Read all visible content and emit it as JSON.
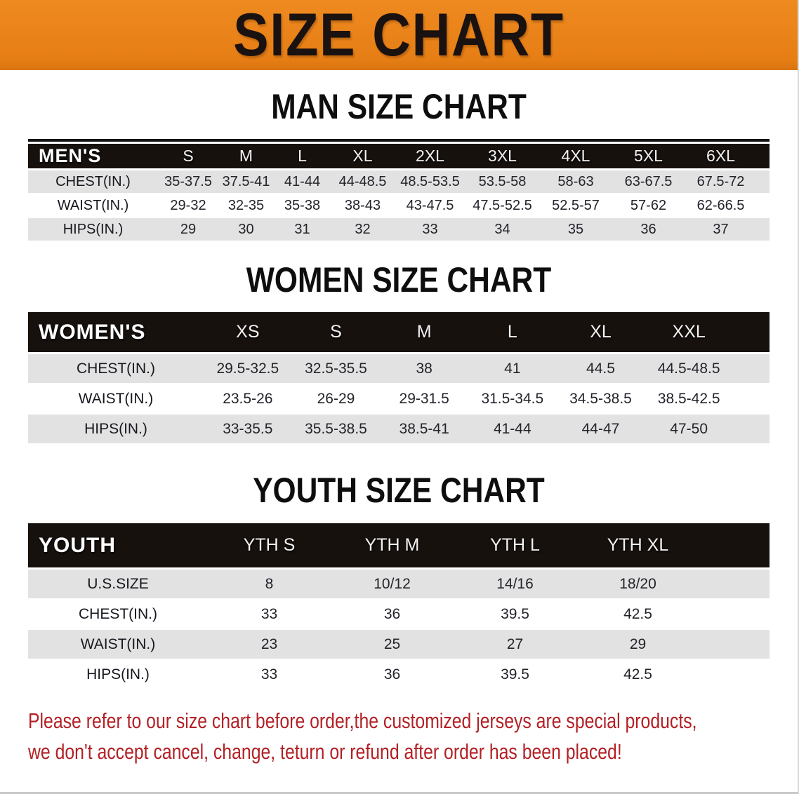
{
  "banner": {
    "title": "SIZE CHART"
  },
  "colors": {
    "banner_orange": "#E8811A",
    "table_header_black": "#17110E",
    "row_shade_gray": "#E3E2E2",
    "note_red": "#B32025"
  },
  "sections": {
    "men": {
      "heading": "MAN SIZE CHART",
      "table": {
        "label": "MEN'S",
        "columns": [
          "S",
          "M",
          "L",
          "XL",
          "2XL",
          "3XL",
          "4XL",
          "5XL",
          "6XL"
        ],
        "rows": [
          {
            "label": "CHEST(IN.)",
            "values": [
              "35-37.5",
              "37.5-41",
              "41-44",
              "44-48.5",
              "48.5-53.5",
              "53.5-58",
              "58-63",
              "63-67.5",
              "67.5-72"
            ]
          },
          {
            "label": "WAIST(IN.)",
            "values": [
              "29-32",
              "32-35",
              "35-38",
              "38-43",
              "43-47.5",
              "47.5-52.5",
              "52.5-57",
              "57-62",
              "62-66.5"
            ]
          },
          {
            "label": "HIPS(IN.)",
            "values": [
              "29",
              "30",
              "31",
              "32",
              "33",
              "34",
              "35",
              "36",
              "37"
            ]
          }
        ]
      }
    },
    "women": {
      "heading": "WOMEN SIZE CHART",
      "table": {
        "label": "WOMEN'S",
        "columns": [
          "XS",
          "S",
          "M",
          "L",
          "XL",
          "XXL"
        ],
        "rows": [
          {
            "label": "CHEST(IN.)",
            "values": [
              "29.5-32.5",
              "32.5-35.5",
              "38",
              "41",
              "44.5",
              "44.5-48.5"
            ]
          },
          {
            "label": "WAIST(IN.)",
            "values": [
              "23.5-26",
              "26-29",
              "29-31.5",
              "31.5-34.5",
              "34.5-38.5",
              "38.5-42.5"
            ]
          },
          {
            "label": "HIPS(IN.)",
            "values": [
              "33-35.5",
              "35.5-38.5",
              "38.5-41",
              "41-44",
              "44-47",
              "47-50"
            ]
          }
        ]
      }
    },
    "youth": {
      "heading": "YOUTH SIZE CHART",
      "table": {
        "label": "YOUTH",
        "columns": [
          "YTH S",
          "YTH M",
          "YTH L",
          "YTH XL"
        ],
        "rows": [
          {
            "label": "U.S.SIZE",
            "values": [
              "8",
              "10/12",
              "14/16",
              "18/20"
            ]
          },
          {
            "label": "CHEST(IN.)",
            "values": [
              "33",
              "36",
              "39.5",
              "42.5"
            ]
          },
          {
            "label": "WAIST(IN.)",
            "values": [
              "23",
              "25",
              "27",
              "29"
            ]
          },
          {
            "label": "HIPS(IN.)",
            "values": [
              "33",
              "36",
              "39.5",
              "42.5"
            ]
          }
        ]
      }
    }
  },
  "footer": {
    "line1": "Please refer to our size chart before order,the customized jerseys are special products,",
    "line2": "we don't accept cancel, change, teturn or refund after order has been placed!"
  }
}
